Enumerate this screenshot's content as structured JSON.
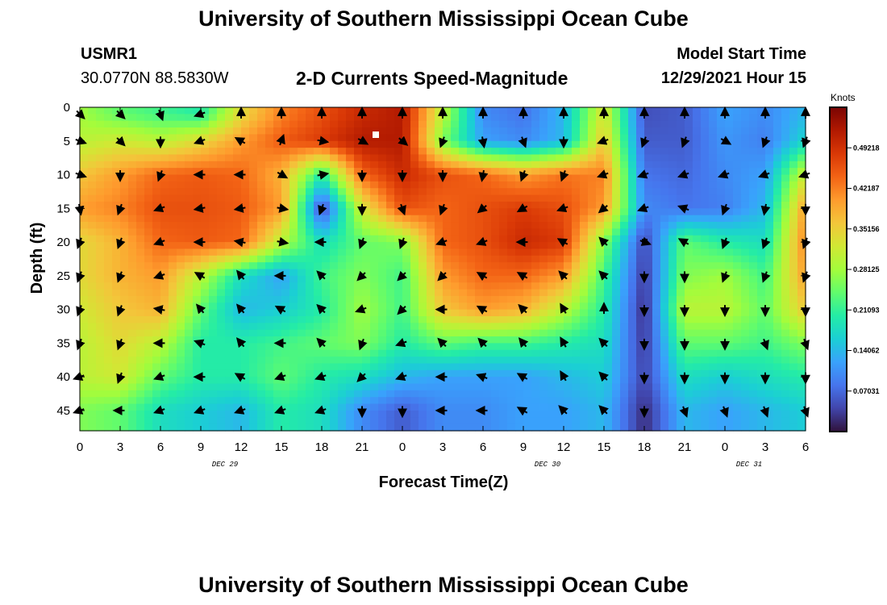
{
  "header": {
    "title": "University of Southern Mississippi Ocean Cube",
    "station": "USMR1",
    "coords": "30.0770N  88.5830W",
    "subtitle": "2-D Currents Speed-Magnitude",
    "model_start_label": "Model Start Time",
    "model_start_value": "12/29/2021 Hour 15"
  },
  "footer": {
    "title": "University of Southern Mississippi Ocean Cube"
  },
  "colors": {
    "scale": [
      "#30123b",
      "#4145ab",
      "#4675ed",
      "#39a2fc",
      "#1bcfd4",
      "#24eca6",
      "#61fc6c",
      "#a4fc3b",
      "#d1e834",
      "#f3c63a",
      "#fe9b2d",
      "#f36315",
      "#d93806",
      "#b11901",
      "#7a0403"
    ]
  },
  "chart_data": {
    "type": "heatmap",
    "title": "2-D Currents Speed-Magnitude",
    "xlabel": "Forecast Time(Z)",
    "ylabel": "Depth (ft)",
    "x_tick_labels": [
      "0",
      "3",
      "6",
      "9",
      "12",
      "15",
      "18",
      "21",
      "0",
      "3",
      "6",
      "9",
      "12",
      "15",
      "18",
      "21",
      "0",
      "3",
      "6"
    ],
    "day_labels": [
      {
        "label": "DEC 29",
        "at_tick": 3.6
      },
      {
        "label": "DEC 30",
        "at_tick": 11.6
      },
      {
        "label": "DEC 31",
        "at_tick": 16.6
      }
    ],
    "y_ticks": [
      0,
      5,
      10,
      15,
      20,
      25,
      30,
      35,
      40,
      45
    ],
    "ylim": [
      0,
      48
    ],
    "colorbar": {
      "label": "Knots",
      "min": 0.0,
      "max": 0.5625,
      "tick_values": [
        0.49218,
        0.42187,
        0.35156,
        0.28125,
        0.21093,
        0.14062,
        0.07031
      ],
      "tick_labels": [
        "0.49218",
        "0.42187",
        "0.35156",
        "0.28125",
        "0.21093",
        "0.14062",
        "0.07031"
      ]
    },
    "depths": [
      1,
      5,
      10,
      15,
      20,
      25,
      30,
      35,
      40,
      45
    ],
    "columns": [
      0,
      1,
      2,
      3,
      4,
      5,
      6,
      7,
      8,
      9,
      10,
      11,
      12,
      13,
      14,
      15,
      16,
      17,
      18
    ],
    "speed": [
      [
        0.28,
        0.24,
        0.22,
        0.2,
        0.34,
        0.42,
        0.46,
        0.5,
        0.52,
        0.3,
        0.1,
        0.08,
        0.14,
        0.33,
        0.05,
        0.06,
        0.12,
        0.1,
        0.14
      ],
      [
        0.3,
        0.32,
        0.3,
        0.34,
        0.4,
        0.45,
        0.48,
        0.52,
        0.52,
        0.26,
        0.12,
        0.1,
        0.14,
        0.36,
        0.06,
        0.06,
        0.11,
        0.09,
        0.17
      ],
      [
        0.36,
        0.4,
        0.44,
        0.45,
        0.44,
        0.38,
        0.2,
        0.44,
        0.5,
        0.46,
        0.44,
        0.4,
        0.43,
        0.42,
        0.08,
        0.07,
        0.1,
        0.12,
        0.32
      ],
      [
        0.4,
        0.42,
        0.46,
        0.46,
        0.45,
        0.4,
        0.04,
        0.32,
        0.46,
        0.44,
        0.46,
        0.48,
        0.46,
        0.4,
        0.1,
        0.08,
        0.09,
        0.14,
        0.4
      ],
      [
        0.34,
        0.38,
        0.44,
        0.45,
        0.44,
        0.3,
        0.18,
        0.24,
        0.26,
        0.44,
        0.46,
        0.5,
        0.48,
        0.26,
        0.04,
        0.24,
        0.2,
        0.18,
        0.42
      ],
      [
        0.34,
        0.38,
        0.4,
        0.3,
        0.18,
        0.12,
        0.22,
        0.26,
        0.22,
        0.4,
        0.44,
        0.44,
        0.4,
        0.22,
        0.03,
        0.26,
        0.28,
        0.22,
        0.4
      ],
      [
        0.32,
        0.36,
        0.38,
        0.24,
        0.14,
        0.16,
        0.2,
        0.28,
        0.22,
        0.36,
        0.4,
        0.38,
        0.3,
        0.2,
        0.02,
        0.3,
        0.3,
        0.24,
        0.36
      ],
      [
        0.3,
        0.34,
        0.3,
        0.2,
        0.2,
        0.22,
        0.24,
        0.26,
        0.2,
        0.24,
        0.22,
        0.22,
        0.2,
        0.18,
        0.03,
        0.24,
        0.24,
        0.22,
        0.26
      ],
      [
        0.3,
        0.32,
        0.24,
        0.2,
        0.2,
        0.24,
        0.2,
        0.18,
        0.14,
        0.12,
        0.12,
        0.12,
        0.14,
        0.16,
        0.04,
        0.18,
        0.16,
        0.18,
        0.2
      ],
      [
        0.26,
        0.24,
        0.18,
        0.16,
        0.14,
        0.2,
        0.18,
        0.1,
        0.06,
        0.1,
        0.1,
        0.12,
        0.12,
        0.14,
        0.02,
        0.14,
        0.12,
        0.14,
        0.16
      ]
    ],
    "direction_deg": [
      [
        135,
        135,
        160,
        250,
        0,
        0,
        0,
        0,
        0,
        0,
        0,
        0,
        0,
        0,
        0,
        0,
        0,
        0,
        0
      ],
      [
        110,
        135,
        180,
        250,
        300,
        20,
        100,
        120,
        130,
        200,
        170,
        160,
        180,
        250,
        200,
        200,
        120,
        200,
        200
      ],
      [
        110,
        180,
        200,
        270,
        270,
        120,
        80,
        180,
        180,
        180,
        190,
        200,
        200,
        250,
        250,
        250,
        250,
        250,
        250
      ],
      [
        170,
        200,
        250,
        260,
        260,
        100,
        200,
        180,
        160,
        200,
        230,
        240,
        250,
        230,
        250,
        290,
        200,
        190,
        180
      ],
      [
        200,
        200,
        250,
        270,
        280,
        100,
        270,
        200,
        200,
        250,
        250,
        270,
        300,
        315,
        110,
        300,
        200,
        200,
        200
      ],
      [
        200,
        200,
        250,
        300,
        320,
        270,
        315,
        225,
        225,
        225,
        300,
        300,
        315,
        315,
        180,
        180,
        200,
        200,
        200
      ],
      [
        200,
        200,
        280,
        320,
        320,
        300,
        315,
        250,
        225,
        270,
        300,
        315,
        330,
        0,
        180,
        180,
        180,
        180,
        180
      ],
      [
        200,
        200,
        270,
        290,
        320,
        270,
        315,
        200,
        250,
        315,
        315,
        320,
        330,
        315,
        180,
        180,
        180,
        160,
        160
      ],
      [
        250,
        200,
        250,
        270,
        300,
        250,
        250,
        225,
        250,
        270,
        290,
        300,
        330,
        315,
        180,
        180,
        180,
        180,
        180
      ],
      [
        250,
        270,
        250,
        250,
        250,
        250,
        250,
        180,
        180,
        270,
        270,
        300,
        315,
        315,
        180,
        160,
        160,
        160,
        160
      ]
    ]
  }
}
